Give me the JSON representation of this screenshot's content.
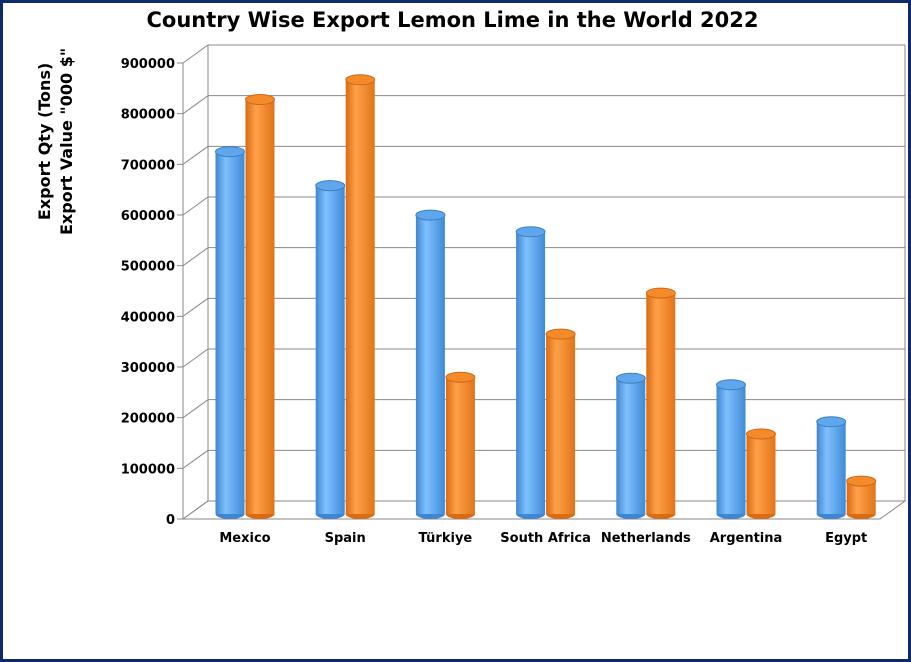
{
  "chart_data": {
    "type": "bar",
    "title": "Country Wise Export Lemon Lime in the World 2022",
    "ylabel_lines": [
      "Export Qty (Tons)",
      "Export Value \"000 $\""
    ],
    "categories": [
      "Mexico",
      "Spain",
      "Türkiye",
      "South Africa",
      "Netherlands",
      "Argentina",
      "Egypt"
    ],
    "series": [
      {
        "values": [
          715000,
          648000,
          590000,
          557000,
          268000,
          255000,
          182000
        ]
      },
      {
        "values": [
          818000,
          857000,
          270000,
          355000,
          436000,
          158000,
          65000
        ]
      }
    ],
    "ylim": [
      0,
      900000
    ],
    "yticks": [
      "0",
      "100000",
      "200000",
      "300000",
      "400000",
      "500000",
      "600000",
      "700000",
      "800000",
      "900000"
    ],
    "grid": true,
    "colors": {
      "series_1": "#5aa7f0",
      "series_2": "#f58a2a"
    }
  }
}
